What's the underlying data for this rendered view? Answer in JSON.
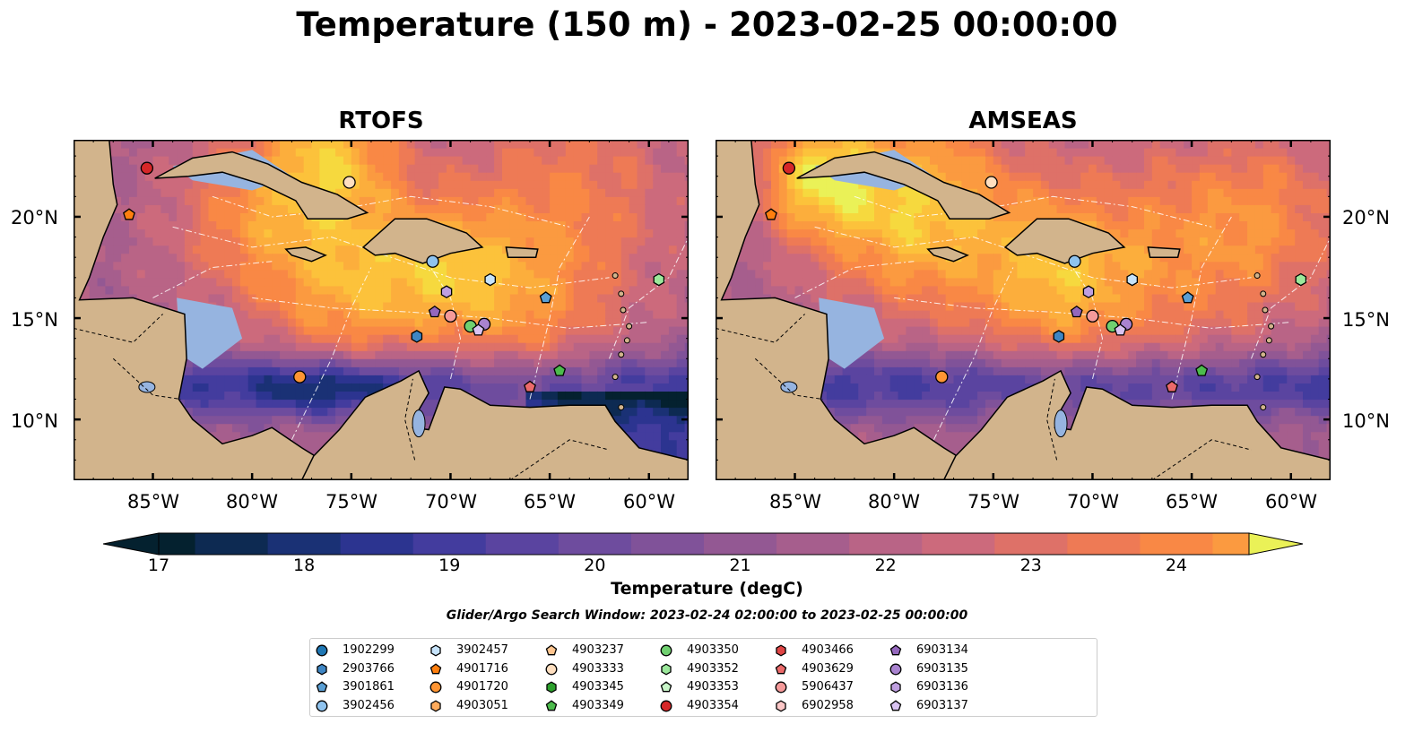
{
  "title": "Temperature (150 m) - 2023-02-25 00:00:00",
  "panels": [
    {
      "title": "RTOFS"
    },
    {
      "title": "AMSEAS"
    }
  ],
  "longitude_labels": [
    "85°W",
    "80°W",
    "75°W",
    "70°W",
    "65°W",
    "60°W"
  ],
  "latitude_labels": [
    "20°N",
    "15°N",
    "10°N"
  ],
  "colorbar": {
    "label": "Temperature (degC)",
    "ticks": [
      "17",
      "18",
      "19",
      "20",
      "21",
      "22",
      "23",
      "24"
    ],
    "min": 16.75,
    "max": 24.5,
    "step": 0.5,
    "extend": "both",
    "colors": [
      "#04212f",
      "#0d2a52",
      "#1a3175",
      "#2c3490",
      "#433c9e",
      "#5a44a0",
      "#6e4c9e",
      "#805299",
      "#935893",
      "#a65e8d",
      "#b96486",
      "#cc6a7c",
      "#de7168",
      "#ee7a55",
      "#f98845",
      "#fb9a40",
      "#fcae3c",
      "#fcc23b",
      "#f6d93e",
      "#eaf157"
    ]
  },
  "search_window": "Glider/Argo Search Window: 2023-02-24 02:00:00 to 2023-02-25 00:00:00",
  "colors": {
    "land": "#d2b48c",
    "shallow_water": "#96b4e0",
    "coastline": "#000000",
    "eez_boundary": "#ffffff"
  },
  "legend": [
    {
      "id": "1902299",
      "marker": "circle",
      "color": "#1f77b4"
    },
    {
      "id": "2903766",
      "marker": "hexagon",
      "color": "#3e86c4"
    },
    {
      "id": "3901861",
      "marker": "pentagon",
      "color": "#5a9fd4"
    },
    {
      "id": "3902456",
      "marker": "circle",
      "color": "#8fc3ee"
    },
    {
      "id": "3902457",
      "marker": "hexagon",
      "color": "#c6e3fb"
    },
    {
      "id": "4901716",
      "marker": "pentagon",
      "color": "#ff7f0e"
    },
    {
      "id": "4901720",
      "marker": "circle",
      "color": "#ff9533"
    },
    {
      "id": "4903051",
      "marker": "hexagon",
      "color": "#ffab5c"
    },
    {
      "id": "4903237",
      "marker": "pentagon",
      "color": "#ffc58f"
    },
    {
      "id": "4903333",
      "marker": "circle",
      "color": "#ffdfc0"
    },
    {
      "id": "4903345",
      "marker": "hexagon",
      "color": "#2ca02c"
    },
    {
      "id": "4903349",
      "marker": "pentagon",
      "color": "#4cbb4c"
    },
    {
      "id": "4903350",
      "marker": "circle",
      "color": "#70d070"
    },
    {
      "id": "4903352",
      "marker": "hexagon",
      "color": "#9be89b"
    },
    {
      "id": "4903353",
      "marker": "pentagon",
      "color": "#c8f5c8"
    },
    {
      "id": "4903354",
      "marker": "circle",
      "color": "#d62728"
    },
    {
      "id": "4903466",
      "marker": "hexagon",
      "color": "#e04545"
    },
    {
      "id": "4903629",
      "marker": "pentagon",
      "color": "#ec6a6a"
    },
    {
      "id": "5906437",
      "marker": "circle",
      "color": "#f59a9a"
    },
    {
      "id": "6902958",
      "marker": "hexagon",
      "color": "#fcc7c7"
    },
    {
      "id": "6903134",
      "marker": "pentagon",
      "color": "#9467bd"
    },
    {
      "id": "6903135",
      "marker": "circle",
      "color": "#a983d0"
    },
    {
      "id": "6903136",
      "marker": "hexagon",
      "color": "#bf9fe0"
    },
    {
      "id": "6903137",
      "marker": "pentagon",
      "color": "#d9c3f1"
    }
  ],
  "floats": [
    {
      "id": "4903354",
      "lon": -85.3,
      "lat": 22.4
    },
    {
      "id": "4901716",
      "lon": -86.2,
      "lat": 20.1
    },
    {
      "id": "4903333",
      "lon": -75.1,
      "lat": 21.7
    },
    {
      "id": "3902456",
      "lon": -70.9,
      "lat": 17.8
    },
    {
      "id": "3902457",
      "lon": -68.0,
      "lat": 16.9
    },
    {
      "id": "6903136",
      "lon": -70.2,
      "lat": 16.3
    },
    {
      "id": "3901861",
      "lon": -65.2,
      "lat": 16.0
    },
    {
      "id": "4903352",
      "lon": -59.5,
      "lat": 16.9
    },
    {
      "id": "6903134",
      "lon": -70.8,
      "lat": 15.3
    },
    {
      "id": "5906437",
      "lon": -70.0,
      "lat": 15.1
    },
    {
      "id": "4903350",
      "lon": -69.0,
      "lat": 14.6
    },
    {
      "id": "6903135",
      "lon": -68.3,
      "lat": 14.7
    },
    {
      "id": "6903137",
      "lon": -68.6,
      "lat": 14.4
    },
    {
      "id": "2903766",
      "lon": -71.7,
      "lat": 14.1
    },
    {
      "id": "4901720",
      "lon": -77.6,
      "lat": 12.1
    },
    {
      "id": "4903349",
      "lon": -64.5,
      "lat": 12.4
    },
    {
      "id": "4903629",
      "lon": -66.0,
      "lat": 11.6
    }
  ]
}
